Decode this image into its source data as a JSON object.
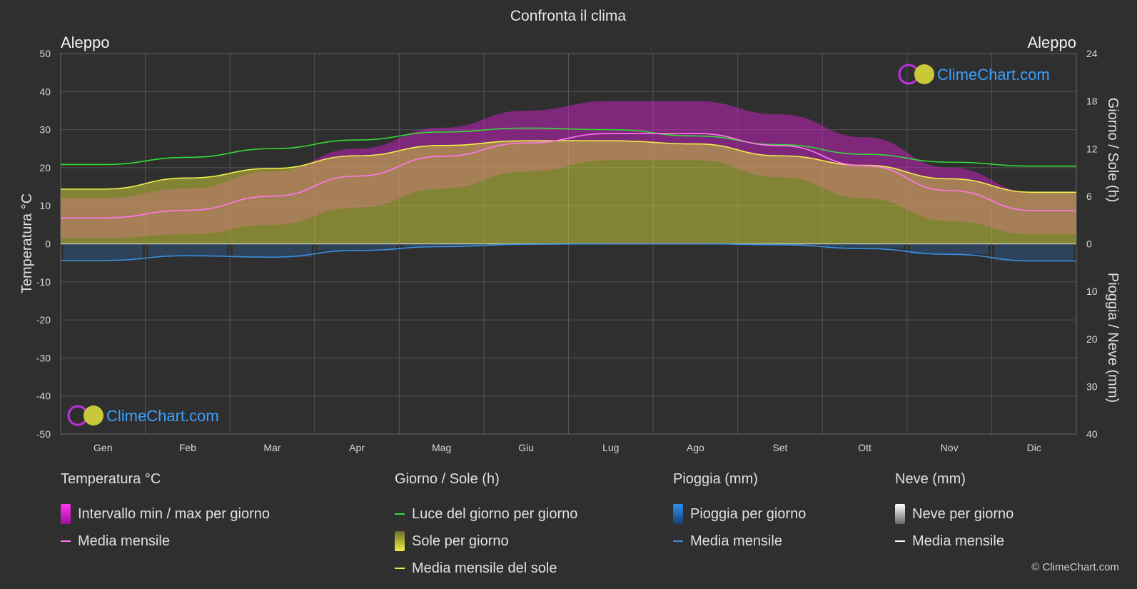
{
  "title": "Confronta il clima",
  "city_left": "Aleppo",
  "city_right": "Aleppo",
  "brand": "ClimeChart.com",
  "copyright": "© ClimeChart.com",
  "colors": {
    "background": "#2f2f2f",
    "temp_range": "#d020c8",
    "temp_avg": "#ff77ee",
    "daylight": "#33dd33",
    "sunshine": "#c8c83a",
    "sunshine_avg": "#f0f04a",
    "rain": "#2a7bd6",
    "rain_avg": "#3a8fe0",
    "snow": "#bbbbbb",
    "snow_avg": "#ffffff",
    "brand_text": "#3aa0ff"
  },
  "chart_data": {
    "type": "area",
    "categories": [
      "Gen",
      "Feb",
      "Mar",
      "Apr",
      "Mag",
      "Giu",
      "Lug",
      "Ago",
      "Set",
      "Ott",
      "Nov",
      "Dic"
    ],
    "axes": {
      "left": {
        "label": "Temperatura °C",
        "ticks": [
          50,
          40,
          30,
          20,
          10,
          0,
          -10,
          -20,
          -30,
          -40,
          -50
        ],
        "range": [
          -50,
          50
        ]
      },
      "right_top": {
        "label": "Giorno / Sole (h)",
        "ticks": [
          24,
          18,
          12,
          6,
          0
        ],
        "range": [
          0,
          24
        ]
      },
      "right_bottom": {
        "label": "Pioggia / Neve (mm)",
        "ticks": [
          0,
          10,
          20,
          30,
          40
        ],
        "range": [
          0,
          40
        ]
      }
    },
    "grid": true,
    "series": [
      {
        "name": "Media mensile",
        "group": "temperature",
        "unit": "°C",
        "values": [
          6.8,
          8.8,
          12.5,
          17.8,
          23.0,
          26.5,
          29.0,
          29.0,
          25.8,
          20.5,
          14.0,
          8.7
        ]
      },
      {
        "name": "Intervallo min / max per giorno",
        "group": "temperature",
        "unit": "°C",
        "min": [
          1.5,
          2.5,
          5.0,
          9.5,
          14.5,
          19.0,
          22.0,
          22.0,
          17.5,
          12.0,
          6.0,
          2.5
        ],
        "max": [
          12.0,
          14.5,
          19.0,
          25.0,
          30.5,
          35.0,
          37.5,
          37.5,
          34.0,
          28.0,
          20.0,
          13.5
        ]
      },
      {
        "name": "Luce del giorno per giorno",
        "group": "daylight",
        "unit": "h",
        "values": [
          10.0,
          10.9,
          12.0,
          13.1,
          14.1,
          14.6,
          14.4,
          13.6,
          12.5,
          11.3,
          10.3,
          9.8
        ]
      },
      {
        "name": "Sole per giorno",
        "group": "sunshine",
        "unit": "h",
        "values": [
          6.9,
          8.3,
          9.5,
          11.1,
          12.4,
          13.0,
          13.0,
          12.6,
          11.1,
          9.9,
          8.2,
          6.5
        ]
      },
      {
        "name": "Media mensile del sole",
        "group": "sunshine",
        "unit": "h",
        "values": [
          6.9,
          8.3,
          9.5,
          11.1,
          12.4,
          13.0,
          13.0,
          12.6,
          11.1,
          9.9,
          8.2,
          6.5
        ]
      },
      {
        "name": "Media mensile",
        "group": "rain",
        "unit": "mm",
        "values": [
          3.5,
          2.5,
          2.8,
          1.4,
          0.6,
          0.1,
          0.0,
          0.0,
          0.2,
          1.0,
          2.2,
          3.6
        ]
      }
    ]
  },
  "legend": {
    "temperature": {
      "title": "Temperatura °C",
      "items": [
        "Intervallo min / max per giorno",
        "Media mensile"
      ]
    },
    "daylight": {
      "title": "Giorno / Sole (h)",
      "items": [
        "Luce del giorno per giorno",
        "Sole per giorno",
        "Media mensile del sole"
      ]
    },
    "rain": {
      "title": "Pioggia (mm)",
      "items": [
        "Pioggia per giorno",
        "Media mensile"
      ]
    },
    "snow": {
      "title": "Neve (mm)",
      "items": [
        "Neve per giorno",
        "Media mensile"
      ]
    }
  }
}
